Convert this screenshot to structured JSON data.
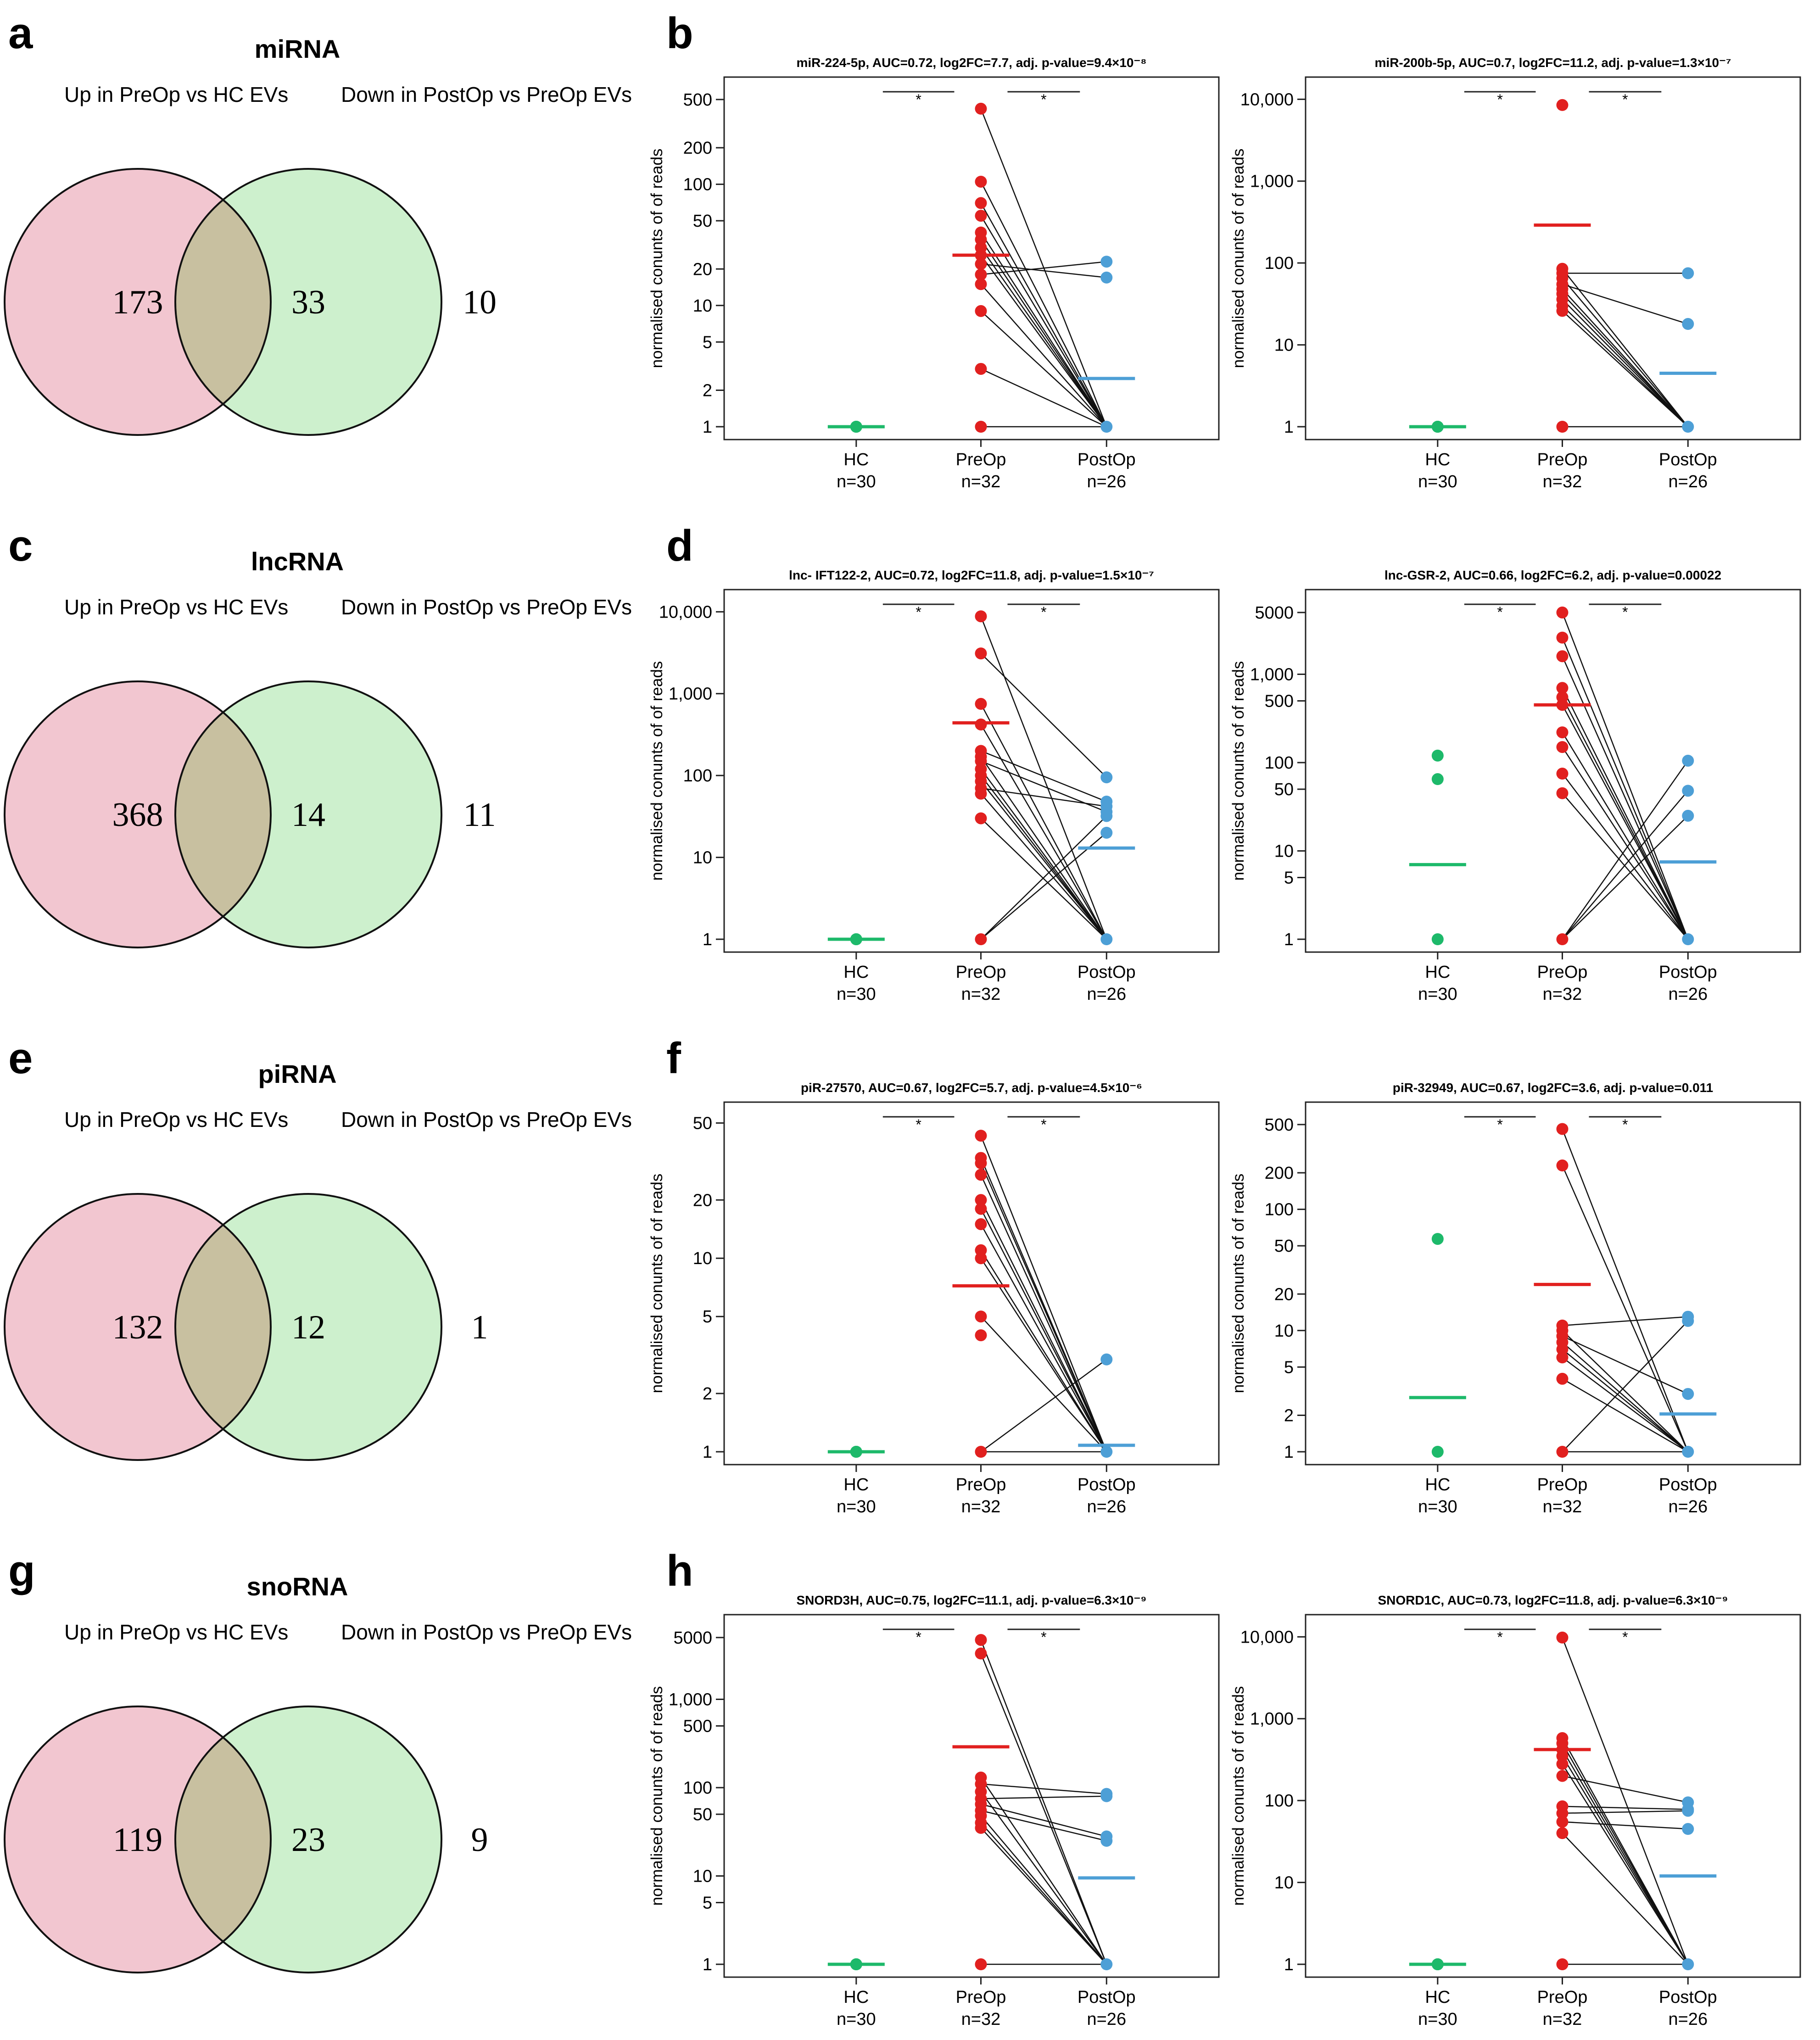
{
  "colors": {
    "hc": "#1db96a",
    "preop": "#e1201f",
    "postop": "#4d9fd6",
    "venn_left": "#f2c6d0",
    "venn_right": "#cdf0cd",
    "venn_overlap": "#c8c0a0"
  },
  "venn": [
    {
      "letter": "a",
      "title": "miRNA",
      "left_label": "Up in PreOp vs HC EVs",
      "right_label": "Down  in PostOp vs PreOp EVs",
      "left_only": "173",
      "overlap": "33",
      "right_only": "10"
    },
    {
      "letter": "c",
      "title": "lncRNA",
      "left_label": "Up in PreOp vs HC EVs",
      "right_label": "Down  in PostOp vs PreOp EVs",
      "left_only": "368",
      "overlap": "14",
      "right_only": "11"
    },
    {
      "letter": "e",
      "title": "piRNA",
      "left_label": "Up in PreOp vs HC EVs",
      "right_label": "Down  in PostOp vs PreOp EVs",
      "left_only": "132",
      "overlap": "12",
      "right_only": "1"
    },
    {
      "letter": "g",
      "title": "snoRNA",
      "left_label": "Up in PreOp vs HC EVs",
      "right_label": "Down  in PostOp vs PreOp EVs",
      "left_only": "119",
      "overlap": "23",
      "right_only": "9"
    }
  ],
  "plot_letters": [
    "b",
    "d",
    "f",
    "h"
  ],
  "chart_data": [
    {
      "type": "scatter",
      "title": "miR-224-5p, AUC=0.72, log2FC=7.7, adj. p-value=9.4×10⁻⁸",
      "ylabel": "normalised conunts of of reads",
      "yscale": "log",
      "ylim": [
        1,
        600
      ],
      "yticks": [
        1,
        2,
        5,
        10,
        20,
        50,
        100,
        200,
        500
      ],
      "ytick_labels": [
        "1",
        "2",
        "5",
        "10",
        "20",
        "50",
        "100",
        "200",
        "500"
      ],
      "categories": [
        "HC",
        "PreOp",
        "PostOp"
      ],
      "n_labels": [
        "n=30",
        "n=32",
        "n=26"
      ],
      "sig_marks": [
        "*",
        "*"
      ],
      "hc": [
        1,
        1,
        1
      ],
      "preop": [
        420,
        105,
        70,
        55,
        40,
        35,
        30,
        26,
        22,
        18,
        15,
        9,
        3,
        1
      ],
      "postop": [
        23,
        17,
        1
      ],
      "means": {
        "hc": 1,
        "preop": 26,
        "postop": 2.5
      },
      "pairs": [
        [
          420,
          1
        ],
        [
          105,
          1
        ],
        [
          70,
          1
        ],
        [
          55,
          1
        ],
        [
          40,
          1
        ],
        [
          35,
          1
        ],
        [
          30,
          1
        ],
        [
          26,
          1
        ],
        [
          22,
          17
        ],
        [
          18,
          23
        ],
        [
          15,
          1
        ],
        [
          9,
          1
        ],
        [
          3,
          1
        ],
        [
          1,
          1
        ]
      ]
    },
    {
      "type": "scatter",
      "title": "miR-200b-5p, AUC=0.7, log2FC=11.2, adj. p-value=1.3×10⁻⁷",
      "ylabel": "normalised conunts of of reads",
      "yscale": "log",
      "ylim": [
        1,
        13000
      ],
      "yticks": [
        1,
        10,
        100,
        1000,
        10000
      ],
      "ytick_labels": [
        "1",
        "10",
        "100",
        "1,000",
        "10,000"
      ],
      "categories": [
        "HC",
        "PreOp",
        "PostOp"
      ],
      "n_labels": [
        "n=30",
        "n=32",
        "n=26"
      ],
      "sig_marks": [
        "*",
        "*"
      ],
      "hc": [
        1,
        1,
        1
      ],
      "preop": [
        8500,
        85,
        75,
        65,
        55,
        48,
        42,
        36,
        30,
        26,
        1
      ],
      "postop": [
        75,
        18,
        1
      ],
      "means": {
        "hc": 1,
        "preop": 290,
        "postop": 4.5
      },
      "pairs": [
        [
          85,
          1
        ],
        [
          75,
          75
        ],
        [
          65,
          1
        ],
        [
          55,
          18
        ],
        [
          48,
          1
        ],
        [
          42,
          1
        ],
        [
          36,
          1
        ],
        [
          30,
          1
        ],
        [
          26,
          1
        ],
        [
          1,
          1
        ]
      ]
    },
    {
      "type": "scatter",
      "title": "lnc- IFT122-2, AUC=0.72, log2FC=11.8, adj. p-value=1.5×10⁻⁷",
      "ylabel": "normalised conunts of of reads",
      "yscale": "log",
      "ylim": [
        1,
        13000
      ],
      "yticks": [
        1,
        10,
        100,
        1000,
        10000
      ],
      "ytick_labels": [
        "1",
        "10",
        "100",
        "1,000",
        "10,000"
      ],
      "categories": [
        "HC",
        "PreOp",
        "PostOp"
      ],
      "n_labels": [
        "n=30",
        "n=32",
        "n=26"
      ],
      "sig_marks": [
        "*",
        "*"
      ],
      "hc": [
        1,
        1,
        1
      ],
      "preop": [
        8800,
        3100,
        750,
        420,
        200,
        170,
        150,
        120,
        100,
        85,
        70,
        60,
        30,
        1
      ],
      "postop": [
        95,
        48,
        42,
        36,
        32,
        20,
        1
      ],
      "means": {
        "hc": 1,
        "preop": 440,
        "postop": 13
      },
      "pairs": [
        [
          8800,
          1
        ],
        [
          3100,
          95
        ],
        [
          750,
          1
        ],
        [
          420,
          1
        ],
        [
          200,
          48
        ],
        [
          170,
          1
        ],
        [
          150,
          36
        ],
        [
          120,
          1
        ],
        [
          100,
          1
        ],
        [
          85,
          1
        ],
        [
          70,
          42
        ],
        [
          60,
          1
        ],
        [
          30,
          1
        ],
        [
          1,
          32
        ],
        [
          1,
          20
        ]
      ]
    },
    {
      "type": "scatter",
      "title": "lnc-GSR-2, AUC=0.66, log2FC=6.2, adj. p-value=0.00022",
      "ylabel": "normalised conunts of of reads",
      "yscale": "log",
      "ylim": [
        1,
        6500
      ],
      "yticks": [
        1,
        5,
        10,
        50,
        100,
        500,
        1000,
        5000
      ],
      "ytick_labels": [
        "1",
        "5",
        "10",
        "50",
        "100",
        "500",
        "1,000",
        "5000"
      ],
      "categories": [
        "HC",
        "PreOp",
        "PostOp"
      ],
      "n_labels": [
        "n=30",
        "n=32",
        "n=26"
      ],
      "sig_marks": [
        "*",
        "*"
      ],
      "hc": [
        120,
        65,
        1
      ],
      "preop": [
        5000,
        2600,
        1600,
        700,
        550,
        450,
        220,
        150,
        75,
        45,
        1
      ],
      "postop": [
        105,
        48,
        25,
        1
      ],
      "means": {
        "hc": 7,
        "preop": 450,
        "postop": 7.5
      },
      "pairs": [
        [
          5000,
          1
        ],
        [
          2600,
          1
        ],
        [
          1600,
          1
        ],
        [
          700,
          1
        ],
        [
          550,
          1
        ],
        [
          450,
          1
        ],
        [
          220,
          1
        ],
        [
          150,
          1
        ],
        [
          75,
          1
        ],
        [
          45,
          1
        ],
        [
          1,
          105
        ],
        [
          1,
          48
        ],
        [
          1,
          25
        ]
      ]
    },
    {
      "type": "scatter",
      "title": "piR-27570, AUC=0.67, log2FC=5.7, adj. p-value=4.5×10⁻⁶",
      "ylabel": "normalised conunts of of reads",
      "yscale": "log",
      "ylim": [
        1,
        55
      ],
      "yticks": [
        1,
        2,
        5,
        10,
        20,
        50
      ],
      "ytick_labels": [
        "1",
        "2",
        "5",
        "10",
        "20",
        "50"
      ],
      "categories": [
        "HC",
        "PreOp",
        "PostOp"
      ],
      "n_labels": [
        "n=30",
        "n=32",
        "n=26"
      ],
      "sig_marks": [
        "*",
        "*"
      ],
      "hc": [
        1,
        1,
        1
      ],
      "preop": [
        43,
        33,
        31,
        27,
        20,
        18,
        15,
        11,
        10,
        5,
        4,
        1
      ],
      "postop": [
        3,
        1
      ],
      "means": {
        "hc": 1,
        "preop": 7.2,
        "postop": 1.08
      },
      "pairs": [
        [
          43,
          1
        ],
        [
          33,
          1
        ],
        [
          31,
          1
        ],
        [
          27,
          1
        ],
        [
          20,
          1
        ],
        [
          18,
          1
        ],
        [
          15,
          1
        ],
        [
          11,
          1
        ],
        [
          10,
          1
        ],
        [
          5,
          1
        ],
        [
          1,
          3
        ],
        [
          1,
          1
        ]
      ]
    },
    {
      "type": "scatter",
      "title": "piR-32949, AUC=0.67, log2FC=3.6, adj. p-value=0.011",
      "ylabel": "normalised conunts of of reads",
      "yscale": "log",
      "ylim": [
        1,
        600
      ],
      "yticks": [
        1,
        2,
        5,
        10,
        20,
        50,
        100,
        200,
        500
      ],
      "ytick_labels": [
        "1",
        "2",
        "5",
        "10",
        "20",
        "50",
        "100",
        "200",
        "500"
      ],
      "categories": [
        "HC",
        "PreOp",
        "PostOp"
      ],
      "n_labels": [
        "n=30",
        "n=32",
        "n=26"
      ],
      "sig_marks": [
        "*",
        "*"
      ],
      "hc": [
        57,
        1
      ],
      "preop": [
        460,
        230,
        11,
        10,
        9,
        8,
        7,
        6,
        4,
        1
      ],
      "postop": [
        13,
        12,
        3,
        1
      ],
      "means": {
        "hc": 2.8,
        "preop": 24,
        "postop": 2.05
      },
      "pairs": [
        [
          460,
          1
        ],
        [
          230,
          1
        ],
        [
          11,
          13
        ],
        [
          10,
          1
        ],
        [
          9,
          3
        ],
        [
          8,
          1
        ],
        [
          7,
          1
        ],
        [
          6,
          1
        ],
        [
          4,
          1
        ],
        [
          1,
          12
        ],
        [
          1,
          1
        ]
      ]
    },
    {
      "type": "scatter",
      "title": "SNORD3H, AUC=0.75, log2FC=11.1, adj. p-value=6.3×10⁻⁹",
      "ylabel": "normalised conunts of of reads",
      "yscale": "log",
      "ylim": [
        1,
        6500
      ],
      "yticks": [
        1,
        5,
        10,
        50,
        100,
        500,
        1000,
        5000
      ],
      "ytick_labels": [
        "1",
        "5",
        "10",
        "50",
        "100",
        "500",
        "1,000",
        "5000"
      ],
      "categories": [
        "HC",
        "PreOp",
        "PostOp"
      ],
      "n_labels": [
        "n=30",
        "n=32",
        "n=26"
      ],
      "sig_marks": [
        "*",
        "*"
      ],
      "hc": [
        1,
        1,
        1
      ],
      "preop": [
        4700,
        3300,
        130,
        110,
        90,
        75,
        65,
        55,
        48,
        40,
        35,
        1
      ],
      "postop": [
        85,
        80,
        28,
        25,
        1
      ],
      "means": {
        "hc": 1,
        "preop": 290,
        "postop": 9.5
      },
      "pairs": [
        [
          4700,
          1
        ],
        [
          3300,
          1
        ],
        [
          130,
          1
        ],
        [
          110,
          85
        ],
        [
          90,
          1
        ],
        [
          75,
          80
        ],
        [
          65,
          28
        ],
        [
          55,
          25
        ],
        [
          48,
          1
        ],
        [
          40,
          1
        ],
        [
          35,
          1
        ],
        [
          1,
          1
        ]
      ]
    },
    {
      "type": "scatter",
      "title": "SNORD1C, AUC=0.73, log2FC=11.8, adj. p-value=6.3×10⁻⁹",
      "ylabel": "normalised conunts of of reads",
      "yscale": "log",
      "ylim": [
        1,
        13000
      ],
      "yticks": [
        1,
        10,
        100,
        1000,
        10000
      ],
      "ytick_labels": [
        "1",
        "10",
        "100",
        "1,000",
        "10,000"
      ],
      "categories": [
        "HC",
        "PreOp",
        "PostOp"
      ],
      "n_labels": [
        "n=30",
        "n=32",
        "n=26"
      ],
      "sig_marks": [
        "*",
        "*"
      ],
      "hc": [
        1,
        1,
        1
      ],
      "preop": [
        9800,
        580,
        500,
        420,
        350,
        280,
        200,
        85,
        70,
        55,
        40,
        1
      ],
      "postop": [
        95,
        78,
        75,
        45,
        1
      ],
      "means": {
        "hc": 1,
        "preop": 420,
        "postop": 12
      },
      "pairs": [
        [
          9800,
          1
        ],
        [
          580,
          1
        ],
        [
          500,
          1
        ],
        [
          420,
          1
        ],
        [
          350,
          1
        ],
        [
          280,
          1
        ],
        [
          200,
          95
        ],
        [
          85,
          78
        ],
        [
          70,
          75
        ],
        [
          55,
          45
        ],
        [
          40,
          1
        ],
        [
          1,
          1
        ]
      ]
    }
  ]
}
